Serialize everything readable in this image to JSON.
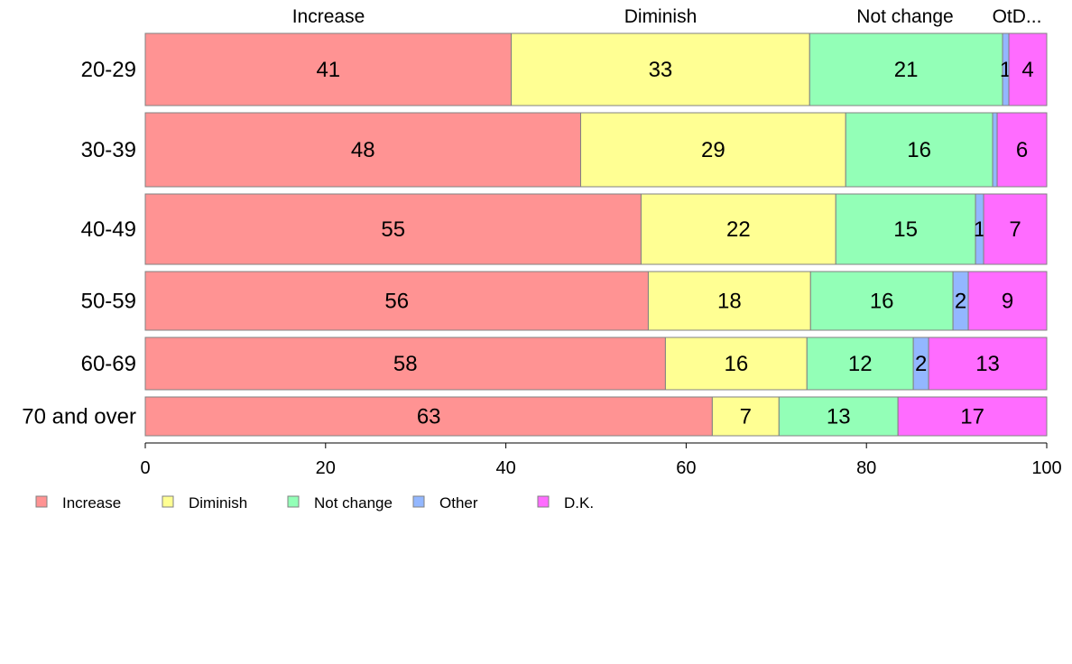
{
  "chart_data": {
    "type": "bar",
    "orientation": "horizontal",
    "stacked": true,
    "categories": [
      "20-29",
      "30-39",
      "40-49",
      "50-59",
      "60-69",
      "70 and over"
    ],
    "series": [
      {
        "name": "Increase",
        "color": "#ff9393",
        "values": [
          41,
          48,
          55,
          56,
          58,
          63
        ],
        "display_values": [
          40.6,
          48.3,
          55.0,
          55.8,
          57.7,
          62.9
        ]
      },
      {
        "name": "Diminish",
        "color": "#ffff93",
        "values": [
          33,
          29,
          22,
          18,
          16,
          7
        ],
        "display_values": [
          33.1,
          29.4,
          21.6,
          18.0,
          15.7,
          7.4
        ]
      },
      {
        "name": "Not change",
        "color": "#93ffb7",
        "values": [
          21,
          16,
          15,
          16,
          12,
          13
        ],
        "display_values": [
          21.4,
          16.3,
          15.5,
          15.8,
          11.8,
          13.2
        ]
      },
      {
        "name": "Other",
        "color": "#93b7ff",
        "values": [
          1,
          0,
          1,
          2,
          2,
          0
        ],
        "display_values": [
          0.7,
          0.5,
          0.9,
          1.7,
          1.7,
          0.0
        ]
      },
      {
        "name": "D.K.",
        "color": "#ff6cff",
        "values": [
          4,
          6,
          7,
          9,
          13,
          17
        ],
        "display_values": [
          4.2,
          5.5,
          7.0,
          8.7,
          13.1,
          16.5
        ]
      }
    ],
    "column_headers": [
      "Increase",
      "Diminish",
      "Not change",
      "OtD..."
    ],
    "x_ticks": [
      "0",
      "20",
      "40",
      "60",
      "80",
      "100"
    ],
    "xlim": [
      0,
      100
    ],
    "row_weights": [
      80,
      82,
      78,
      65,
      58,
      43
    ],
    "xlabel": "",
    "ylabel": "",
    "grid": false,
    "legend_position": "bottom-left"
  }
}
